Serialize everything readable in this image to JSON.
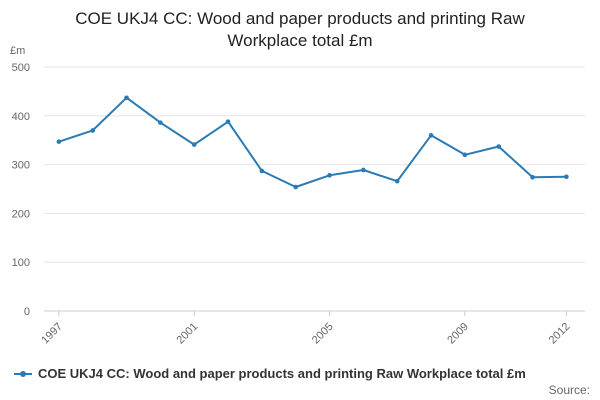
{
  "chart_data": {
    "type": "line",
    "title": "COE UKJ4 CC: Wood and paper products and printing Raw Workplace total £m",
    "title_lines": [
      "COE UKJ4 CC: Wood and paper products and printing Raw",
      "Workplace total £m"
    ],
    "ylabel": "£m",
    "xlabel": "",
    "ylim": [
      0,
      500
    ],
    "yticks": [
      0,
      100,
      200,
      300,
      400,
      500
    ],
    "xticks": [
      "1997",
      "2001",
      "2005",
      "2009",
      "2012"
    ],
    "grid": true,
    "legend_position": "bottom",
    "source_label": "Source:",
    "color": "#2a7ab5",
    "series": [
      {
        "name": "COE UKJ4 CC: Wood and paper products and printing Raw Workplace total £m",
        "x": [
          1997,
          1998,
          1999,
          2000,
          2001,
          2002,
          2003,
          2004,
          2005,
          2006,
          2007,
          2008,
          2009,
          2010,
          2011,
          2012
        ],
        "values": [
          347,
          370,
          437,
          386,
          341,
          388,
          287,
          254,
          278,
          289,
          266,
          360,
          320,
          337,
          274,
          275
        ]
      }
    ]
  }
}
